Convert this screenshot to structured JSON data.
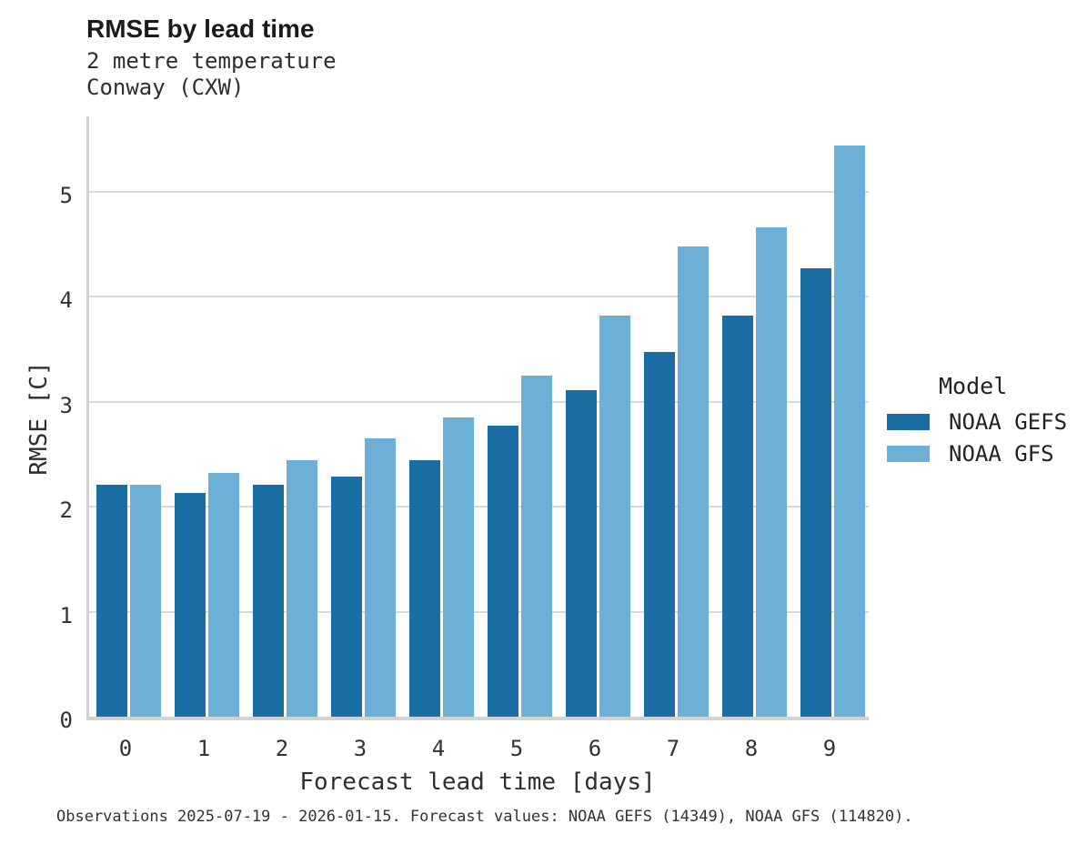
{
  "header": {
    "title": "RMSE by lead time",
    "subtitle1": "2 metre temperature",
    "subtitle2": "Conway (CXW)"
  },
  "chart_data": {
    "type": "bar",
    "title": "RMSE by lead time",
    "subtitle": [
      "2 metre temperature",
      "Conway (CXW)"
    ],
    "xlabel": "Forecast lead time [days]",
    "ylabel": "RMSE [C]",
    "categories": [
      "0",
      "1",
      "2",
      "3",
      "4",
      "5",
      "6",
      "7",
      "8",
      "9"
    ],
    "series": [
      {
        "name": "NOAA GEFS",
        "color": "#1b6ea3",
        "values": [
          2.21,
          2.13,
          2.21,
          2.29,
          2.44,
          2.77,
          3.11,
          3.47,
          3.82,
          4.27
        ]
      },
      {
        "name": "NOAA GFS",
        "color": "#6cb0d8",
        "values": [
          2.21,
          2.32,
          2.44,
          2.65,
          2.85,
          3.25,
          3.82,
          4.48,
          4.66,
          5.44
        ]
      }
    ],
    "ylim": [
      0,
      5.75
    ],
    "yticks": [
      0,
      1,
      2,
      3,
      4,
      5
    ],
    "grid": true,
    "legend_title": "Model",
    "legend_position": "right"
  },
  "footer": {
    "caption": "Observations 2025-07-19 - 2026-01-15. Forecast values: NOAA GEFS (14349), NOAA GFS (114820)."
  },
  "colors": {
    "bar_gefs": "#1b6ea3",
    "bar_gfs": "#6cb0d8",
    "gridline": "#d9d9d9",
    "axis": "#d2d2d2"
  }
}
